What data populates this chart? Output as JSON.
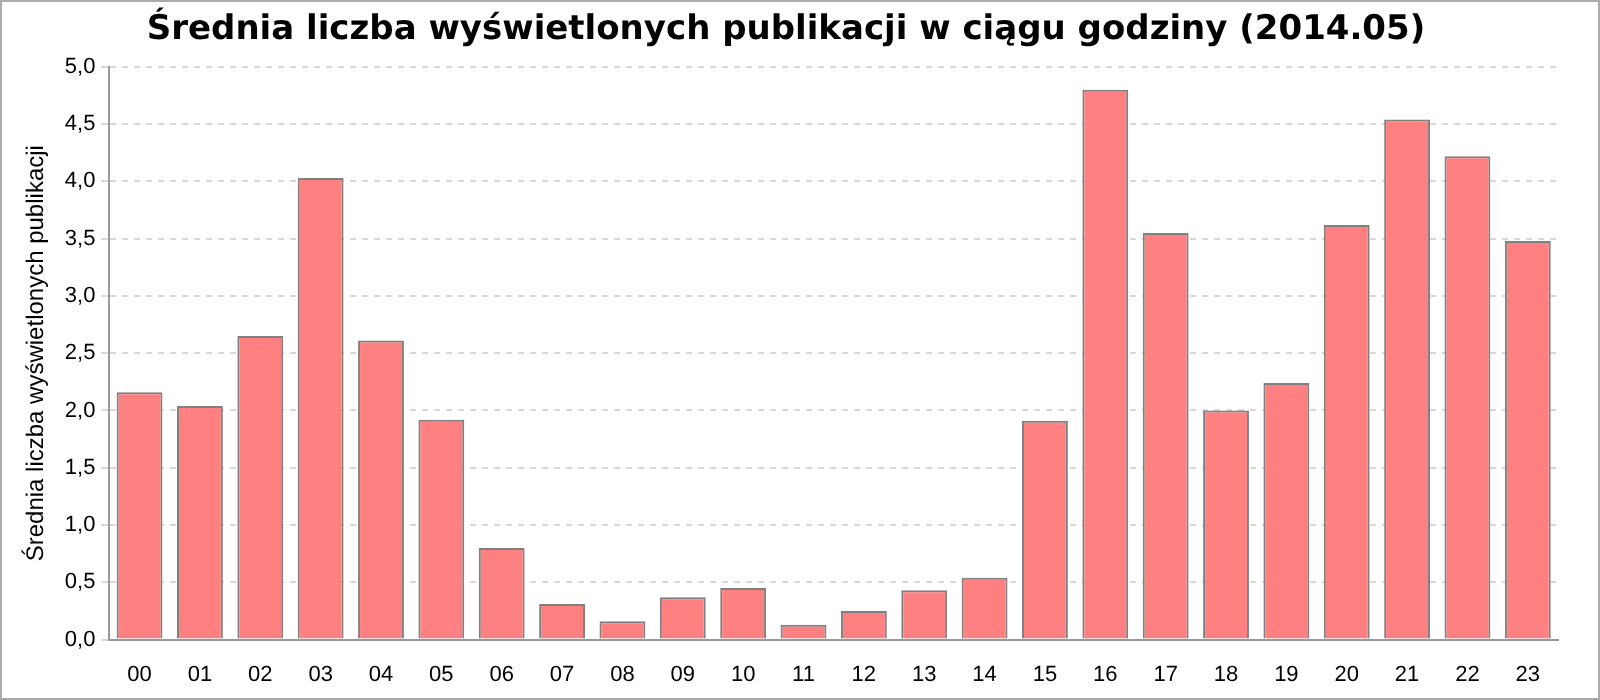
{
  "chart_data": {
    "type": "bar",
    "title": "Średnia liczba wyświetlonych publikacji w ciągu godziny (2014.05)",
    "ylabel": "Średnia liczba wyświetlonych publikacji",
    "categories": [
      "00",
      "01",
      "02",
      "03",
      "04",
      "05",
      "06",
      "07",
      "08",
      "09",
      "10",
      "11",
      "12",
      "13",
      "14",
      "15",
      "16",
      "17",
      "18",
      "19",
      "20",
      "21",
      "22",
      "23"
    ],
    "values": [
      2.16,
      2.04,
      2.65,
      4.03,
      2.61,
      1.92,
      0.8,
      0.31,
      0.16,
      0.37,
      0.45,
      0.13,
      0.25,
      0.43,
      0.54,
      1.91,
      4.8,
      3.55,
      2.0,
      2.24,
      3.62,
      4.54,
      4.22,
      3.48
    ],
    "color": "#ff8080",
    "ylim": [
      0,
      5
    ],
    "yticks": [
      {
        "value": 0,
        "label": "0,0"
      },
      {
        "value": 0.5,
        "label": "0,5"
      },
      {
        "value": 1,
        "label": "1,0"
      },
      {
        "value": 1.5,
        "label": "1,5"
      },
      {
        "value": 2,
        "label": "2,0"
      },
      {
        "value": 2.5,
        "label": "2,5"
      },
      {
        "value": 3,
        "label": "3,0"
      },
      {
        "value": 3.5,
        "label": "3,5"
      },
      {
        "value": 4,
        "label": "4,0"
      },
      {
        "value": 4.5,
        "label": "4,5"
      },
      {
        "value": 5,
        "label": "5,0"
      }
    ],
    "grid": "y"
  }
}
